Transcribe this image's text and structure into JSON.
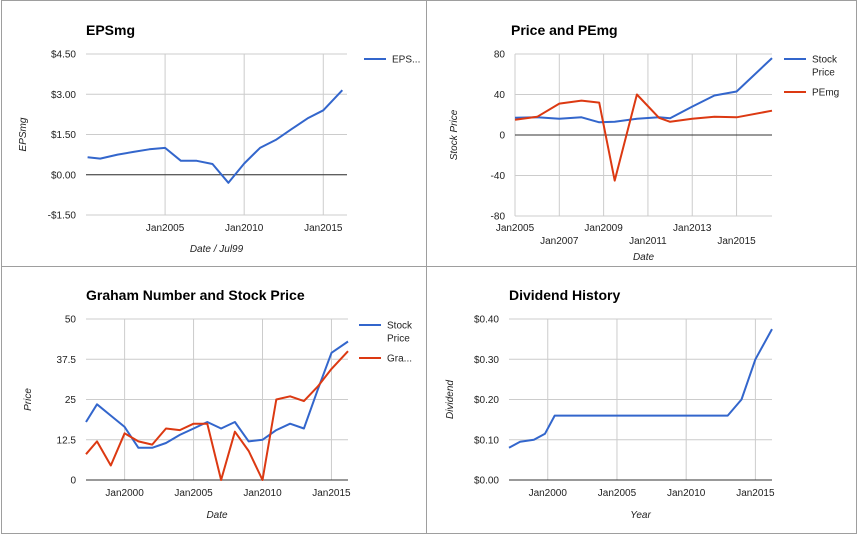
{
  "chart_data": [
    {
      "type": "line",
      "title": "EPSmg",
      "xlabel": "Date / Jul99",
      "ylabel": "EPSmg",
      "xlim": [
        2000,
        2016.5
      ],
      "ylim": [
        -1.5,
        4.5
      ],
      "yticks": [
        -1.5,
        0,
        1.5,
        3,
        4.5
      ],
      "ytick_labels": [
        "-$1.50",
        "$0.00",
        "$1.50",
        "$3.00",
        "$4.50"
      ],
      "xticks": [
        2005,
        2010,
        2015
      ],
      "xtick_labels": [
        "Jan2005",
        "Jan2010",
        "Jan2015"
      ],
      "zero_line": true,
      "grid": true,
      "legend": "right",
      "series": [
        {
          "name": "EPS...",
          "color": "#3366cc",
          "x": [
            2000.1,
            2000.9,
            2002,
            2003,
            2004,
            2005,
            2006,
            2007,
            2008,
            2009,
            2010,
            2011,
            2012,
            2013,
            2014,
            2015,
            2016.2
          ],
          "y": [
            0.65,
            0.6,
            0.75,
            0.85,
            0.95,
            1.0,
            0.52,
            0.52,
            0.4,
            -0.3,
            0.42,
            1.0,
            1.3,
            1.7,
            2.1,
            2.4,
            3.15
          ]
        }
      ]
    },
    {
      "type": "line",
      "title": "Price and PEmg",
      "xlabel": "Date",
      "ylabel": "Stock Price",
      "xlim": [
        2005,
        2016.6
      ],
      "ylim": [
        -80,
        80
      ],
      "yticks": [
        -80,
        -40,
        0,
        40,
        80
      ],
      "ytick_labels": [
        "-80",
        "-40",
        "0",
        "40",
        "80"
      ],
      "xticks": [
        2005,
        2007,
        2009,
        2011,
        2013,
        2015
      ],
      "xtick_labels": [
        "Jan2005",
        "Jan2007",
        "Jan2009",
        "Jan2011",
        "Jan2013",
        "Jan2015"
      ],
      "zero_line": true,
      "grid": true,
      "legend": "right",
      "series": [
        {
          "name": "Stock Price",
          "color": "#3366cc",
          "x": [
            2005,
            2006,
            2007,
            2008,
            2008.8,
            2009.5,
            2010.5,
            2011.5,
            2012,
            2013,
            2014,
            2015,
            2016.6
          ],
          "y": [
            17,
            17.5,
            16,
            17.5,
            12.5,
            13,
            16,
            17.5,
            16.5,
            28,
            39,
            43,
            76
          ]
        },
        {
          "name": "PEmg",
          "color": "#dc3912",
          "x": [
            2005,
            2006,
            2007,
            2008,
            2008.8,
            2009.5,
            2010.5,
            2011.5,
            2012,
            2013,
            2014,
            2015,
            2016.6
          ],
          "y": [
            15,
            18,
            31,
            34,
            32,
            -45,
            40,
            17,
            13,
            16,
            18,
            17.5,
            24
          ]
        }
      ]
    },
    {
      "type": "line",
      "title": "Graham Number and Stock Price",
      "xlabel": "Date",
      "ylabel": "Price",
      "xlim": [
        1997.2,
        2016.2
      ],
      "ylim": [
        0,
        50
      ],
      "yticks": [
        0,
        12.5,
        25,
        37.5,
        50
      ],
      "ytick_labels": [
        "0",
        "12.5",
        "25",
        "37.5",
        "50"
      ],
      "xticks": [
        2000,
        2005,
        2010,
        2015
      ],
      "xtick_labels": [
        "Jan2000",
        "Jan2005",
        "Jan2010",
        "Jan2015"
      ],
      "zero_line": false,
      "grid": true,
      "legend": "right",
      "series": [
        {
          "name": "Stock Price",
          "color": "#3366cc",
          "x": [
            1997.2,
            1998,
            1999,
            2000,
            2001,
            2002,
            2003,
            2004,
            2005,
            2006,
            2007,
            2008,
            2009,
            2010,
            2011,
            2012,
            2013,
            2014,
            2015,
            2016.2
          ],
          "y": [
            18,
            23.5,
            20,
            16.5,
            10,
            10,
            11.5,
            14,
            16,
            18,
            16,
            18,
            12,
            12.5,
            15.5,
            17.5,
            16,
            28,
            39.5,
            43
          ]
        },
        {
          "name": "Gra...",
          "color": "#dc3912",
          "x": [
            1997.2,
            1998,
            1999,
            2000,
            2001,
            2002,
            2003,
            2004,
            2005,
            2006,
            2007,
            2008,
            2009,
            2010,
            2011,
            2012,
            2013,
            2014,
            2015,
            2016.2
          ],
          "y": [
            8,
            12,
            4.5,
            14.5,
            12,
            11,
            16,
            15.5,
            17.5,
            17.5,
            0,
            15,
            9,
            0,
            25,
            26,
            24.5,
            29,
            34.5,
            40
          ]
        }
      ]
    },
    {
      "type": "line",
      "title": "Dividend History",
      "xlabel": "Year",
      "ylabel": "Dividend",
      "xlim": [
        1997.2,
        2016.2
      ],
      "ylim": [
        0,
        0.4
      ],
      "yticks": [
        0,
        0.1,
        0.2,
        0.3,
        0.4
      ],
      "ytick_labels": [
        "$0.00",
        "$0.10",
        "$0.20",
        "$0.30",
        "$0.40"
      ],
      "xticks": [
        2000,
        2005,
        2010,
        2015
      ],
      "xtick_labels": [
        "Jan2000",
        "Jan2005",
        "Jan2010",
        "Jan2015"
      ],
      "zero_line": false,
      "grid": true,
      "legend": "none",
      "series": [
        {
          "color": "#3366cc",
          "x": [
            1997.2,
            1998,
            1999,
            1999.8,
            2000.5,
            2001,
            2002,
            2003,
            2004,
            2005,
            2006,
            2007,
            2008,
            2009,
            2010,
            2011,
            2012,
            2013,
            2014,
            2015,
            2016.2
          ],
          "y": [
            0.08,
            0.095,
            0.1,
            0.115,
            0.16,
            0.16,
            0.16,
            0.16,
            0.16,
            0.16,
            0.16,
            0.16,
            0.16,
            0.16,
            0.16,
            0.16,
            0.16,
            0.16,
            0.2,
            0.3,
            0.375
          ]
        }
      ]
    }
  ]
}
